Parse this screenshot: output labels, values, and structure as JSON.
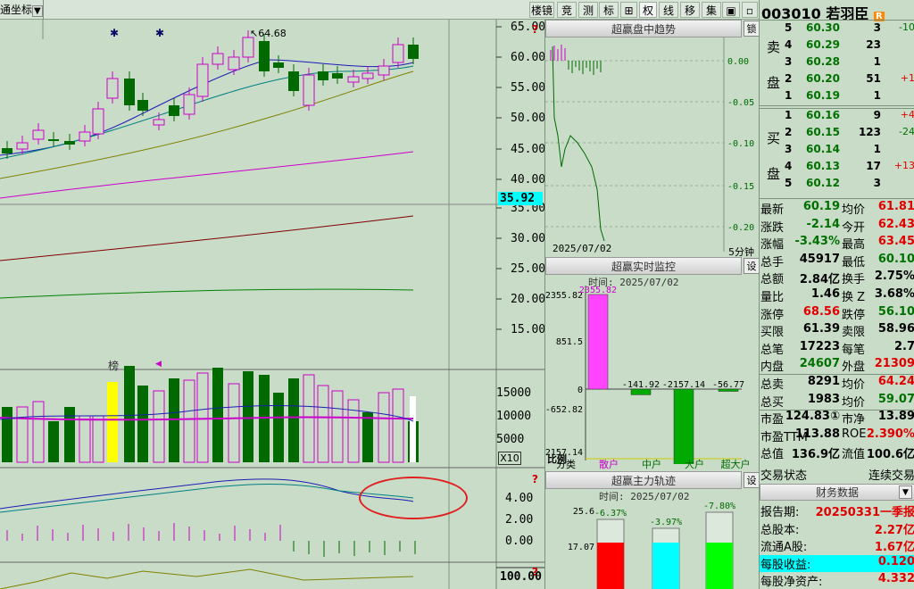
{
  "toolbar": {
    "left_label": "通坐标",
    "left_arrow": "▼",
    "buttons": [
      "楼镜",
      "竞",
      "测",
      "标",
      "⊞",
      "权",
      "线",
      "移",
      "集",
      "▣",
      "▫"
    ]
  },
  "price_axis": [
    "65.00",
    "60.00",
    "55.00",
    "50.00",
    "45.00",
    "40.00",
    "35.00",
    "30.00",
    "25.00",
    "20.00",
    "15.00"
  ],
  "current_price_tag": "35.92",
  "main_annotation": "64.68",
  "vol_axis": [
    "15000",
    "10000",
    "5000"
  ],
  "vol_multiplier": "X10",
  "vol_label": "榜",
  "macd_axis": [
    "4.00",
    "2.00",
    "0.00"
  ],
  "bottom_axis": "100.00",
  "intraday_panel": {
    "title": "超赢盘中趋势",
    "corner_btn": "锁",
    "axis": [
      "0.00",
      "-0.05",
      "-0.10",
      "-0.15",
      "-0.20"
    ],
    "date": "2025/07/02",
    "interval": "5分钟"
  },
  "monitor_panel": {
    "title": "超赢实时监控",
    "corner_btn": "设",
    "time_label": "时间: 2025/07/02",
    "axis": [
      "2355.82",
      "851.5",
      "0",
      "-652.82",
      "-2157.14"
    ],
    "ratio_label": "比例",
    "bar_values": [
      "2355.82",
      "-141.92",
      "-2157.14",
      "-56.77"
    ],
    "categories": [
      "分类",
      "散户",
      "中户",
      "大户",
      "超大户"
    ]
  },
  "main_force_panel": {
    "title": "超赢主力轨迹",
    "corner_btn": "设",
    "time_label": "时间: 2025/07/02",
    "axis": [
      "25.6",
      "17.07"
    ],
    "percents": [
      "-6.37%",
      "-3.97%",
      "-7.80%"
    ]
  },
  "quote": {
    "stock_code": "003010",
    "stock_name": "若羽臣",
    "flag": "R",
    "sell_label": [
      "卖",
      "盘"
    ],
    "buy_label": [
      "买",
      "盘"
    ],
    "sell": [
      {
        "lvl": "5",
        "price": "60.30",
        "vol": "3",
        "chg": "-10"
      },
      {
        "lvl": "4",
        "price": "60.29",
        "vol": "23",
        "chg": ""
      },
      {
        "lvl": "3",
        "price": "60.28",
        "vol": "1",
        "chg": ""
      },
      {
        "lvl": "2",
        "price": "60.20",
        "vol": "51",
        "chg": "+1"
      },
      {
        "lvl": "1",
        "price": "60.19",
        "vol": "1",
        "chg": ""
      }
    ],
    "buy": [
      {
        "lvl": "1",
        "price": "60.16",
        "vol": "9",
        "chg": "+4"
      },
      {
        "lvl": "2",
        "price": "60.15",
        "vol": "123",
        "chg": "-24"
      },
      {
        "lvl": "3",
        "price": "60.14",
        "vol": "1",
        "chg": ""
      },
      {
        "lvl": "4",
        "price": "60.13",
        "vol": "17",
        "chg": "+13"
      },
      {
        "lvl": "5",
        "price": "60.12",
        "vol": "3",
        "chg": ""
      }
    ],
    "stats": [
      {
        "k1": "最新",
        "v1": "60.19",
        "c1": "green",
        "k2": "均价",
        "v2": "61.81",
        "c2": "red"
      },
      {
        "k1": "涨跌",
        "v1": "-2.14",
        "c1": "green",
        "k2": "今开",
        "v2": "62.43",
        "c2": "red"
      },
      {
        "k1": "涨幅",
        "v1": "-3.43%",
        "c1": "green",
        "k2": "最高",
        "v2": "63.45",
        "c2": "red"
      },
      {
        "k1": "总手",
        "v1": "45917",
        "c1": "black",
        "k2": "最低",
        "v2": "60.10",
        "c2": "green"
      },
      {
        "k1": "总额",
        "v1": "2.84亿",
        "c1": "black",
        "k2": "换手",
        "v2": "2.75%",
        "c2": "black"
      },
      {
        "k1": "量比",
        "v1": "1.46",
        "c1": "black",
        "k2": "换 Z",
        "v2": "3.68%",
        "c2": "black"
      },
      {
        "k1": "涨停",
        "v1": "68.56",
        "c1": "red",
        "k2": "跌停",
        "v2": "56.10",
        "c2": "green"
      },
      {
        "k1": "买限",
        "v1": "61.39",
        "c1": "black",
        "k2": "卖限",
        "v2": "58.96",
        "c2": "black"
      },
      {
        "k1": "总笔",
        "v1": "17223",
        "c1": "black",
        "k2": "每笔",
        "v2": "2.7",
        "c2": "black"
      },
      {
        "k1": "内盘",
        "v1": "24607",
        "c1": "green",
        "k2": "外盘",
        "v2": "21309",
        "c2": "red"
      },
      {
        "k1": "总卖",
        "v1": "8291",
        "c1": "black",
        "k2": "均价",
        "v2": "64.24",
        "c2": "red"
      },
      {
        "k1": "总买",
        "v1": "1983",
        "c1": "black",
        "k2": "均价",
        "v2": "59.07",
        "c2": "green"
      },
      {
        "k1": "市盈",
        "v1": "124.83①",
        "c1": "black",
        "k2": "市净",
        "v2": "13.89",
        "c2": "black"
      },
      {
        "k1": "市盈TTM",
        "v1": "113.88",
        "c1": "black",
        "k2": "ROE",
        "v2": "2.390%",
        "c2": "red"
      },
      {
        "k1": "总值",
        "v1": "136.9亿",
        "c1": "black",
        "k2": "流值",
        "v2": "100.6亿",
        "c2": "black"
      }
    ],
    "trade_state_label": "交易状态",
    "trade_state_value": "连续交易",
    "finance_title": "财务数据",
    "finance": [
      {
        "k": "报告期:",
        "v": "20250331一季报"
      },
      {
        "k": "总股本:",
        "v": "2.27亿"
      },
      {
        "k": "流通A股:",
        "v": "1.67亿"
      },
      {
        "k": "每股收益:",
        "v": "0.120"
      },
      {
        "k": "每股净资产:",
        "v": "4.332"
      }
    ]
  }
}
